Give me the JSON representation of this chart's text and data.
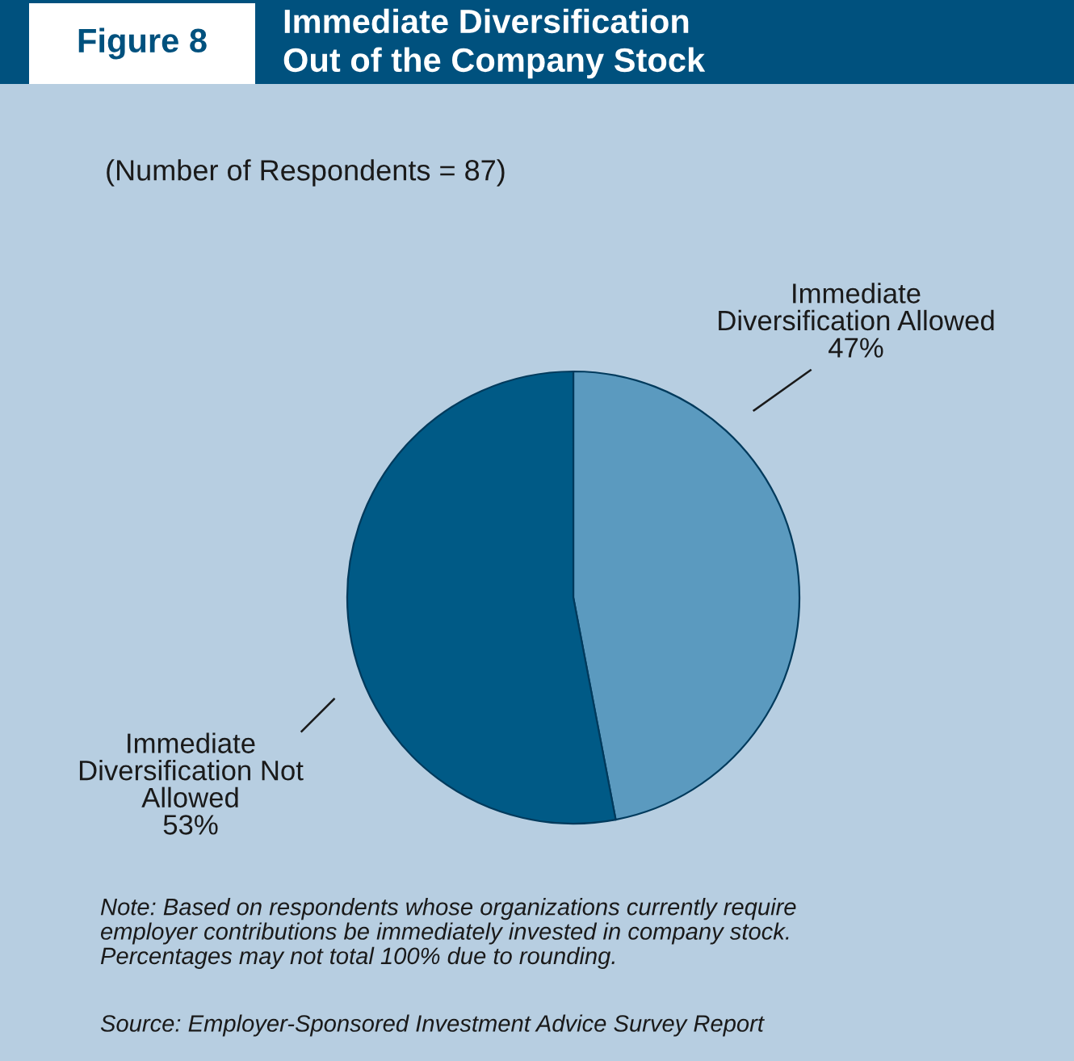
{
  "chart_data": {
    "type": "pie",
    "title": "Immediate Diversification\nOut of the Company Stock",
    "subtitle": "(Number of Respondents = 87)",
    "categories": [
      "Immediate\nDiversification Allowed",
      "Immediate\nDiversification Not\nAllowed"
    ],
    "values": [
      47,
      53
    ],
    "colors": [
      "#5b9abf",
      "#005a86"
    ],
    "value_labels": [
      "47%",
      "53%"
    ],
    "annotations": [
      "Figure 8",
      "Note: Based on respondents whose organizations currently require\nemployer contributions be immediately invested in company stock.\nPercentages may not total 100% due to rounding.",
      "Source: Employer-Sponsored Investment Advice Survey Report"
    ]
  }
}
